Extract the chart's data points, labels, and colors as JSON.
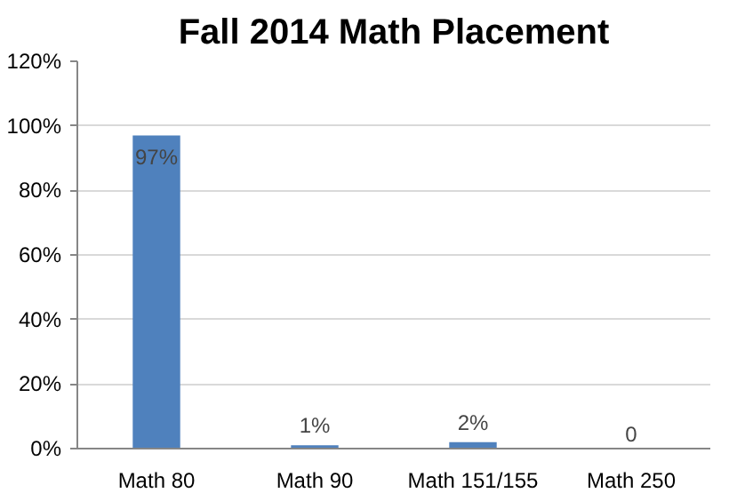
{
  "chart_data": {
    "type": "bar",
    "title": "Fall 2014 Math Placement",
    "categories": [
      "Math 80",
      "Math 90",
      "Math 151/155",
      "Math 250"
    ],
    "values": [
      97,
      1,
      2,
      0
    ],
    "value_labels": [
      "97%",
      "1%",
      "2%",
      "0"
    ],
    "color": "#4f81bd",
    "ylim": [
      0,
      120
    ],
    "yticks": [
      {
        "value": 0,
        "label": "0%"
      },
      {
        "value": 20,
        "label": "20%"
      },
      {
        "value": 40,
        "label": "40%"
      },
      {
        "value": 60,
        "label": "60%"
      },
      {
        "value": 80,
        "label": "80%"
      },
      {
        "value": 100,
        "label": "100%"
      },
      {
        "value": 120,
        "label": "120%"
      }
    ],
    "grid": "y"
  }
}
